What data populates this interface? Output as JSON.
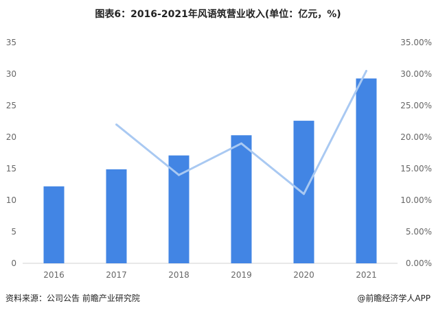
{
  "title": "图表6：2016-2021年风语筑营业收入(单位：亿元，%)",
  "footer": {
    "source": "资料来源：公司公告 前瞻产业研究院",
    "brand": "@前瞻经济学人APP"
  },
  "chart_data": {
    "type": "bar",
    "categories": [
      "2016",
      "2017",
      "2018",
      "2019",
      "2020",
      "2021"
    ],
    "series": [
      {
        "type": "bar",
        "axis": "left",
        "values": [
          12.2,
          14.9,
          17.1,
          20.3,
          22.6,
          29.3
        ]
      },
      {
        "type": "line",
        "axis": "right",
        "values": [
          null,
          0.22,
          0.14,
          0.19,
          0.11,
          0.305
        ]
      }
    ],
    "ylim_left": [
      0,
      35
    ],
    "yticks_left": [
      "0",
      "5",
      "10",
      "15",
      "20",
      "25",
      "30",
      "35"
    ],
    "ylim_right": [
      0,
      0.35
    ],
    "yticks_right": [
      "0.00%",
      "5.00%",
      "10.00%",
      "15.00%",
      "20.00%",
      "25.00%",
      "30.00%",
      "35.00%"
    ],
    "grid": false,
    "colors": {
      "bar": "#4285e4",
      "line": "#a9c9f2",
      "axis": "#d0d0d0"
    }
  }
}
